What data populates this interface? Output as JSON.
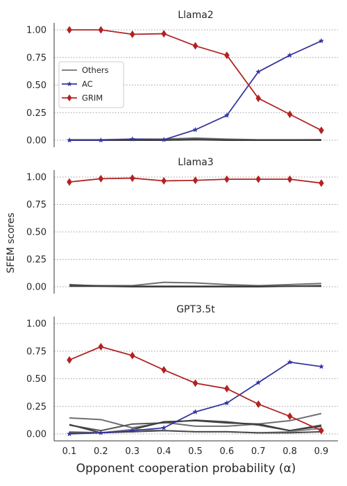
{
  "figure": {
    "ylabel": "SFEM scores",
    "xlabel": "Opponent cooperation probability (α)"
  },
  "legend": {
    "items": [
      {
        "label": "Others",
        "color": "#707070",
        "marker": "none"
      },
      {
        "label": "AC",
        "color": "#3535a0",
        "marker": "star"
      },
      {
        "label": "GRIM",
        "color": "#b22222",
        "marker": "diamond"
      }
    ]
  },
  "chart_data": [
    {
      "type": "line",
      "title": "Llama2",
      "x": [
        0.1,
        0.2,
        0.3,
        0.4,
        0.5,
        0.6,
        0.7,
        0.8,
        0.9
      ],
      "x_tick_labels": [
        "0.1",
        "0.2",
        "0.3",
        "0.4",
        "0.5",
        "0.6",
        "0.7",
        "0.8",
        "0.9"
      ],
      "ylim": [
        0,
        1
      ],
      "y_ticks": [
        "0.00",
        "0.25",
        "0.50",
        "0.75",
        "1.00"
      ],
      "grid": "horizontal dotted",
      "legend_placement": "middle-left",
      "series": [
        {
          "name": "GRIM",
          "values": [
            1.0,
            1.0,
            0.96,
            0.965,
            0.855,
            0.77,
            0.38,
            0.235,
            0.09
          ]
        },
        {
          "name": "AC",
          "values": [
            0.0,
            0.0,
            0.01,
            0.005,
            0.095,
            0.225,
            0.62,
            0.77,
            0.9
          ]
        },
        {
          "name": "Others",
          "values": [
            0.005,
            0.005,
            0.01,
            0.01,
            0.02,
            0.01,
            0.005,
            0.005,
            0.005
          ]
        },
        {
          "name": "Others",
          "values": [
            0.0,
            0.0,
            0.005,
            0.005,
            0.01,
            0.005,
            0.0,
            0.0,
            0.005
          ]
        },
        {
          "name": "Others",
          "values": [
            0.0,
            0.0,
            0.0,
            0.0,
            0.005,
            0.0,
            0.0,
            0.0,
            0.0
          ]
        }
      ]
    },
    {
      "type": "line",
      "title": "Llama3",
      "x": [
        0.1,
        0.2,
        0.3,
        0.4,
        0.5,
        0.6,
        0.7,
        0.8,
        0.9
      ],
      "ylim": [
        0,
        1
      ],
      "y_ticks": [
        "0.00",
        "0.25",
        "0.50",
        "0.75",
        "1.00"
      ],
      "grid": "horizontal dotted",
      "series": [
        {
          "name": "GRIM",
          "values": [
            0.955,
            0.985,
            0.99,
            0.965,
            0.97,
            0.98,
            0.98,
            0.98,
            0.945
          ]
        },
        {
          "name": "Others",
          "values": [
            0.015,
            0.01,
            0.01,
            0.04,
            0.035,
            0.02,
            0.01,
            0.02,
            0.03
          ]
        },
        {
          "name": "Others",
          "values": [
            0.02,
            0.005,
            0.005,
            0.005,
            0.005,
            0.005,
            0.005,
            0.005,
            0.01
          ]
        },
        {
          "name": "Others",
          "values": [
            0.005,
            0.005,
            0.0,
            0.0,
            0.0,
            0.0,
            0.0,
            0.005,
            0.005
          ]
        }
      ]
    },
    {
      "type": "line",
      "title": "GPT3.5t",
      "x": [
        0.1,
        0.2,
        0.3,
        0.4,
        0.5,
        0.6,
        0.7,
        0.8,
        0.9
      ],
      "x_tick_labels": [
        "0.1",
        "0.2",
        "0.3",
        "0.4",
        "0.5",
        "0.6",
        "0.7",
        "0.8",
        "0.9"
      ],
      "ylim": [
        0,
        1
      ],
      "y_ticks": [
        "0.00",
        "0.25",
        "0.50",
        "0.75",
        "1.00"
      ],
      "grid": "horizontal dotted",
      "series": [
        {
          "name": "GRIM",
          "values": [
            0.67,
            0.79,
            0.71,
            0.58,
            0.46,
            0.41,
            0.27,
            0.16,
            0.03
          ]
        },
        {
          "name": "AC",
          "values": [
            0.0,
            0.01,
            0.03,
            0.055,
            0.2,
            0.28,
            0.465,
            0.65,
            0.61
          ]
        },
        {
          "name": "Others",
          "values": [
            0.145,
            0.13,
            0.055,
            0.105,
            0.07,
            0.07,
            0.09,
            0.12,
            0.185
          ]
        },
        {
          "name": "Others",
          "values": [
            0.08,
            0.03,
            0.09,
            0.1,
            0.125,
            0.11,
            0.08,
            0.03,
            0.08
          ]
        },
        {
          "name": "Others",
          "values": [
            0.085,
            0.01,
            0.04,
            0.11,
            0.12,
            0.1,
            0.09,
            0.03,
            0.07
          ]
        },
        {
          "name": "Others",
          "values": [
            0.02,
            0.01,
            0.04,
            0.03,
            0.02,
            0.02,
            0.01,
            0.02,
            0.05
          ]
        },
        {
          "name": "Others",
          "values": [
            0.01,
            0.01,
            0.02,
            0.03,
            0.02,
            0.02,
            0.01,
            0.01,
            0.02
          ]
        }
      ]
    }
  ]
}
